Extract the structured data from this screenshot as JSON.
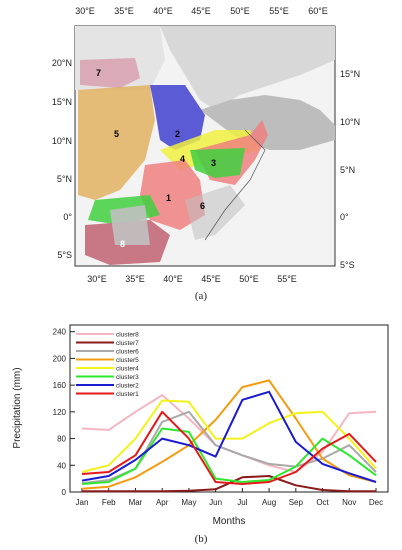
{
  "map": {
    "caption": "(a)",
    "top_lon_labels": [
      "30°E",
      "35°E",
      "40°E",
      "45°E",
      "50°E",
      "55°E",
      "60°E"
    ],
    "bottom_lon_labels": [
      "30°E",
      "35°E",
      "40°E",
      "45°E",
      "50°E",
      "55°E"
    ],
    "left_lat_labels": [
      "20°N",
      "15°N",
      "10°N",
      "5°N",
      "0°",
      "5°S"
    ],
    "right_lat_labels": [
      "15°N",
      "10°N",
      "5°N",
      "0°",
      "5°S"
    ],
    "region_labels": [
      "7",
      "5",
      "2",
      "4",
      "3",
      "1",
      "6",
      "8"
    ],
    "cluster_colors": {
      "cluster1": "#f08080",
      "cluster2": "#4040d0",
      "cluster3": "#40d040",
      "cluster4": "#f0f040",
      "cluster5": "#e0b060",
      "cluster6": "#c0c0c0",
      "cluster7": "#d9a0b0",
      "cluster8": "#c06070"
    }
  },
  "chart_data": {
    "type": "line",
    "caption": "(b)",
    "xlabel": "Months",
    "ylabel": "Precipitation (mm)",
    "categories": [
      "Jan",
      "Feb",
      "Mar",
      "Apr",
      "May",
      "Jun",
      "Jul",
      "Aug",
      "Sep",
      "Oct",
      "Nov",
      "Dec"
    ],
    "yticks": [
      0,
      40,
      80,
      120,
      160,
      200,
      240
    ],
    "ylim": [
      0,
      250
    ],
    "legend_position": "top-left",
    "series": [
      {
        "name": "cluster8",
        "color": "#f4b6c2",
        "values": [
          95,
          93,
          120,
          145,
          110,
          70,
          55,
          40,
          30,
          60,
          118,
          120
        ]
      },
      {
        "name": "cluster7",
        "color": "#8b1a1a",
        "values": [
          1,
          1,
          1,
          1,
          2,
          4,
          22,
          24,
          10,
          3,
          1,
          1
        ]
      },
      {
        "name": "cluster6",
        "color": "#a9a9a9",
        "values": [
          13,
          18,
          35,
          105,
          120,
          70,
          55,
          42,
          38,
          50,
          70,
          30
        ]
      },
      {
        "name": "cluster5",
        "color": "#f39c12",
        "values": [
          5,
          8,
          22,
          45,
          70,
          108,
          157,
          167,
          110,
          50,
          25,
          15
        ]
      },
      {
        "name": "cluster4",
        "color": "#f3f31a",
        "values": [
          30,
          40,
          80,
          137,
          135,
          80,
          80,
          103,
          118,
          120,
          80,
          35
        ]
      },
      {
        "name": "cluster3",
        "color": "#2ee82e",
        "values": [
          12,
          15,
          35,
          95,
          90,
          20,
          15,
          18,
          38,
          80,
          55,
          25
        ]
      },
      {
        "name": "cluster2",
        "color": "#1a1ad1",
        "values": [
          17,
          24,
          48,
          80,
          70,
          53,
          138,
          150,
          75,
          42,
          28,
          15
        ]
      },
      {
        "name": "cluster1",
        "color": "#e41a1a",
        "values": [
          27,
          30,
          55,
          120,
          80,
          15,
          12,
          15,
          30,
          65,
          87,
          45
        ]
      }
    ]
  }
}
